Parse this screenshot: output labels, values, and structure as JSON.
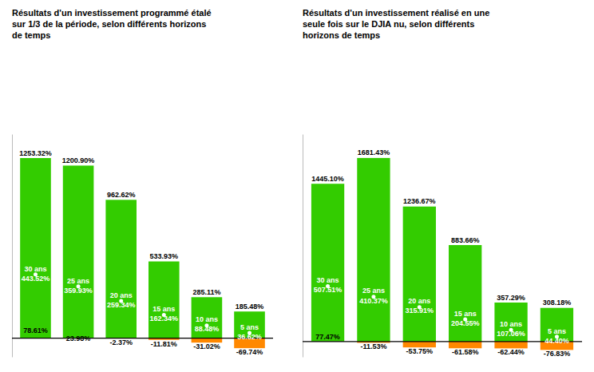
{
  "chart_data": [
    {
      "type": "bar",
      "title": "Résultats d'un investissement programmé étalé\nsur 1/3 de la période, selon différents horizons\nde temps",
      "categories": [
        "30 ans",
        "25 ans",
        "20 ans",
        "15 ans",
        "10 ans",
        "5 ans"
      ],
      "series": [
        {
          "type": "bar",
          "color": "#33cc00",
          "values": [
            1253.32,
            1200.9,
            962.62,
            533.93,
            285.11,
            185.48
          ],
          "value_labels": [
            "1253.32%",
            "1200.90%",
            "962.62%",
            "533.93%",
            "285.11%",
            "185.48%"
          ]
        },
        {
          "type": "bar",
          "color": "#ff8800",
          "values": [
            78.61,
            23.98,
            -2.37,
            -11.81,
            -31.02,
            -69.74
          ],
          "value_labels": [
            "78.61%",
            "23.98%",
            "-2.37%",
            "-11.81%",
            "-31.02%",
            "-69.74%"
          ]
        },
        {
          "type": "scatter",
          "color": "#ffffff",
          "marker": "circle",
          "values": [
            443.52,
            359.93,
            259.34,
            162.34,
            88.48,
            36.62
          ],
          "value_labels": [
            "443.52%",
            "359.93%",
            "259.34%",
            "162.34%",
            "88.48%",
            "36.62%"
          ]
        }
      ],
      "ylim": [
        -130,
        1420
      ],
      "yticks": [],
      "tick_labels": false,
      "data_labels": true
    },
    {
      "type": "bar",
      "title": "Résultats d'un investissement réalisé en une\nseule fois sur le DJIA nu, selon différents\nhorizons de temps",
      "categories": [
        "30 ans",
        "25 ans",
        "20 ans",
        "15 ans",
        "10 ans",
        "5 ans"
      ],
      "series": [
        {
          "type": "bar",
          "color": "#33cc00",
          "values": [
            1445.1,
            1681.43,
            1236.67,
            883.66,
            357.29,
            308.18
          ],
          "value_labels": [
            "1445.10%",
            "1681.43%",
            "1236.67%",
            "883.66%",
            "357.29%",
            "308.18%"
          ]
        },
        {
          "type": "bar",
          "color": "#ff8800",
          "values": [
            77.47,
            -11.53,
            -53.75,
            -61.58,
            -62.44,
            -76.83
          ],
          "value_labels": [
            "77.47%",
            "-11.53%",
            "-53.75%",
            "-61.58%",
            "-62.44%",
            "-76.83%"
          ]
        },
        {
          "type": "scatter",
          "color": "#ffffff",
          "marker": "circle",
          "values": [
            507.51,
            410.37,
            315.91,
            204.55,
            107.06,
            44.4
          ],
          "value_labels": [
            "507.51%",
            "410.37%",
            "315.91%",
            "204.55%",
            "107.06%",
            "44.40%"
          ]
        }
      ],
      "ylim": [
        -140,
        1900
      ],
      "yticks": [],
      "tick_labels": false,
      "data_labels": true
    }
  ]
}
